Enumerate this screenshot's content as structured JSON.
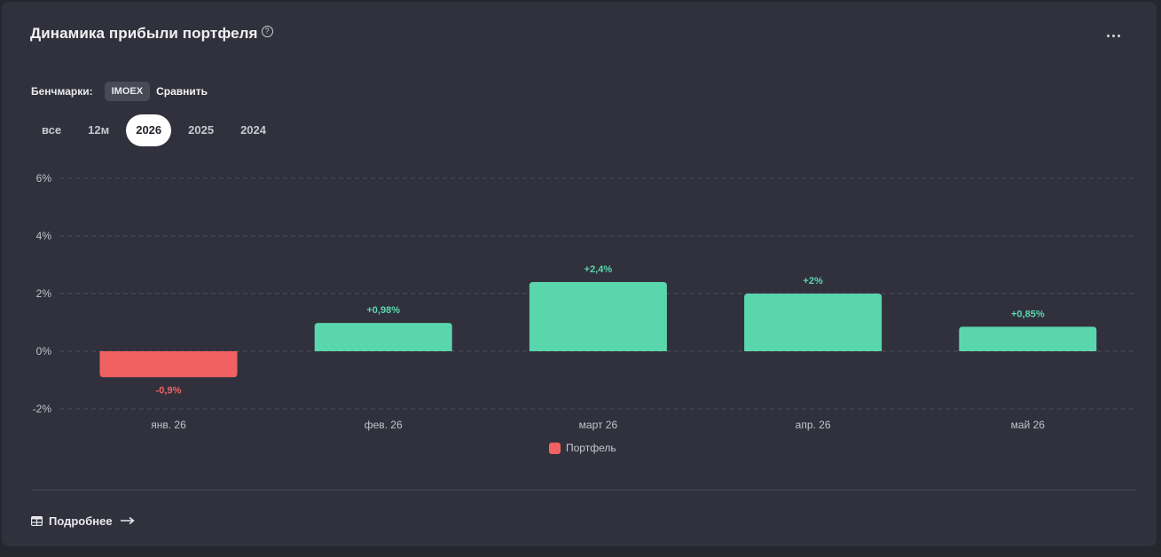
{
  "header": {
    "title": "Динамика прибыли портфеля",
    "help_icon": "?"
  },
  "benchmarks": {
    "label": "Бенчмарки:",
    "chip": "IMOEX",
    "compare": "Сравнить"
  },
  "periods": [
    {
      "label": "все",
      "active": false
    },
    {
      "label": "12м",
      "active": false
    },
    {
      "label": "2026",
      "active": true
    },
    {
      "label": "2025",
      "active": false
    },
    {
      "label": "2024",
      "active": false
    }
  ],
  "footer": {
    "more_label": "Подробнее"
  },
  "colors": {
    "positive": "#5ad6ad",
    "negative": "#f06262"
  },
  "chart_data": {
    "type": "bar",
    "categories": [
      "янв. 26",
      "фев. 26",
      "март 26",
      "апр. 26",
      "май 26"
    ],
    "values": [
      -0.9,
      0.98,
      2.4,
      2.0,
      0.85
    ],
    "data_labels": [
      "-0,9%",
      "+0,98%",
      "+2,4%",
      "+2%",
      "+0,85%"
    ],
    "yticks": [
      6,
      4,
      2,
      0,
      -2
    ],
    "ytick_labels": [
      "6%",
      "4%",
      "2%",
      "0%",
      "-2%"
    ],
    "ylim": [
      -2,
      6
    ],
    "grid": true,
    "legend": {
      "name": "Портфель",
      "placement": "bottom"
    },
    "title": "",
    "xlabel": "",
    "ylabel": ""
  }
}
